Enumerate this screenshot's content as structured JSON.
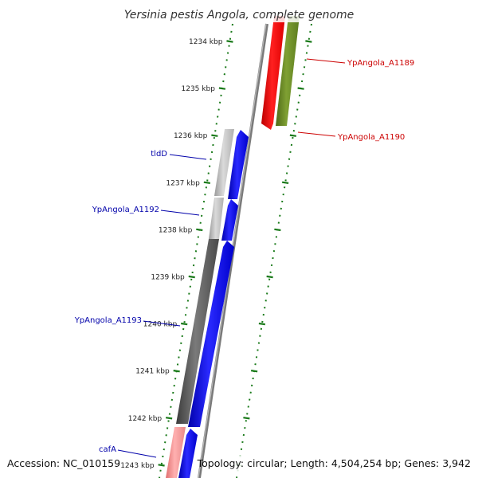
{
  "title": "Yersinia pestis Angola, complete genome",
  "ticks": [
    "1234 kbp",
    "1235 kbp",
    "1236 kbp",
    "1237 kbp",
    "1238 kbp",
    "1239 kbp",
    "1240 kbp",
    "1241 kbp",
    "1242 kbp",
    "1243 kbp"
  ],
  "genes_right": [
    {
      "label": "YpAngola_A1189"
    },
    {
      "label": "YpAngola_A1190"
    }
  ],
  "genes_left": [
    {
      "label": "tldD"
    },
    {
      "label": "YpAngola_A1192"
    },
    {
      "label": "YpAngola_A1193"
    },
    {
      "label": "cafA"
    }
  ],
  "footer": {
    "accession": "Accession: NC_010159",
    "summary": "Topology: circular; Length: 4,504,254 bp; Genes: 3,942"
  },
  "colors": {
    "forward_gene": "#0000ee",
    "reverse_gene": "#ee0000",
    "olive_gene": "#6b8e23",
    "tick_mark": "#1a7a1a",
    "forward_label": "#0000aa",
    "reverse_label": "#cc0000"
  }
}
